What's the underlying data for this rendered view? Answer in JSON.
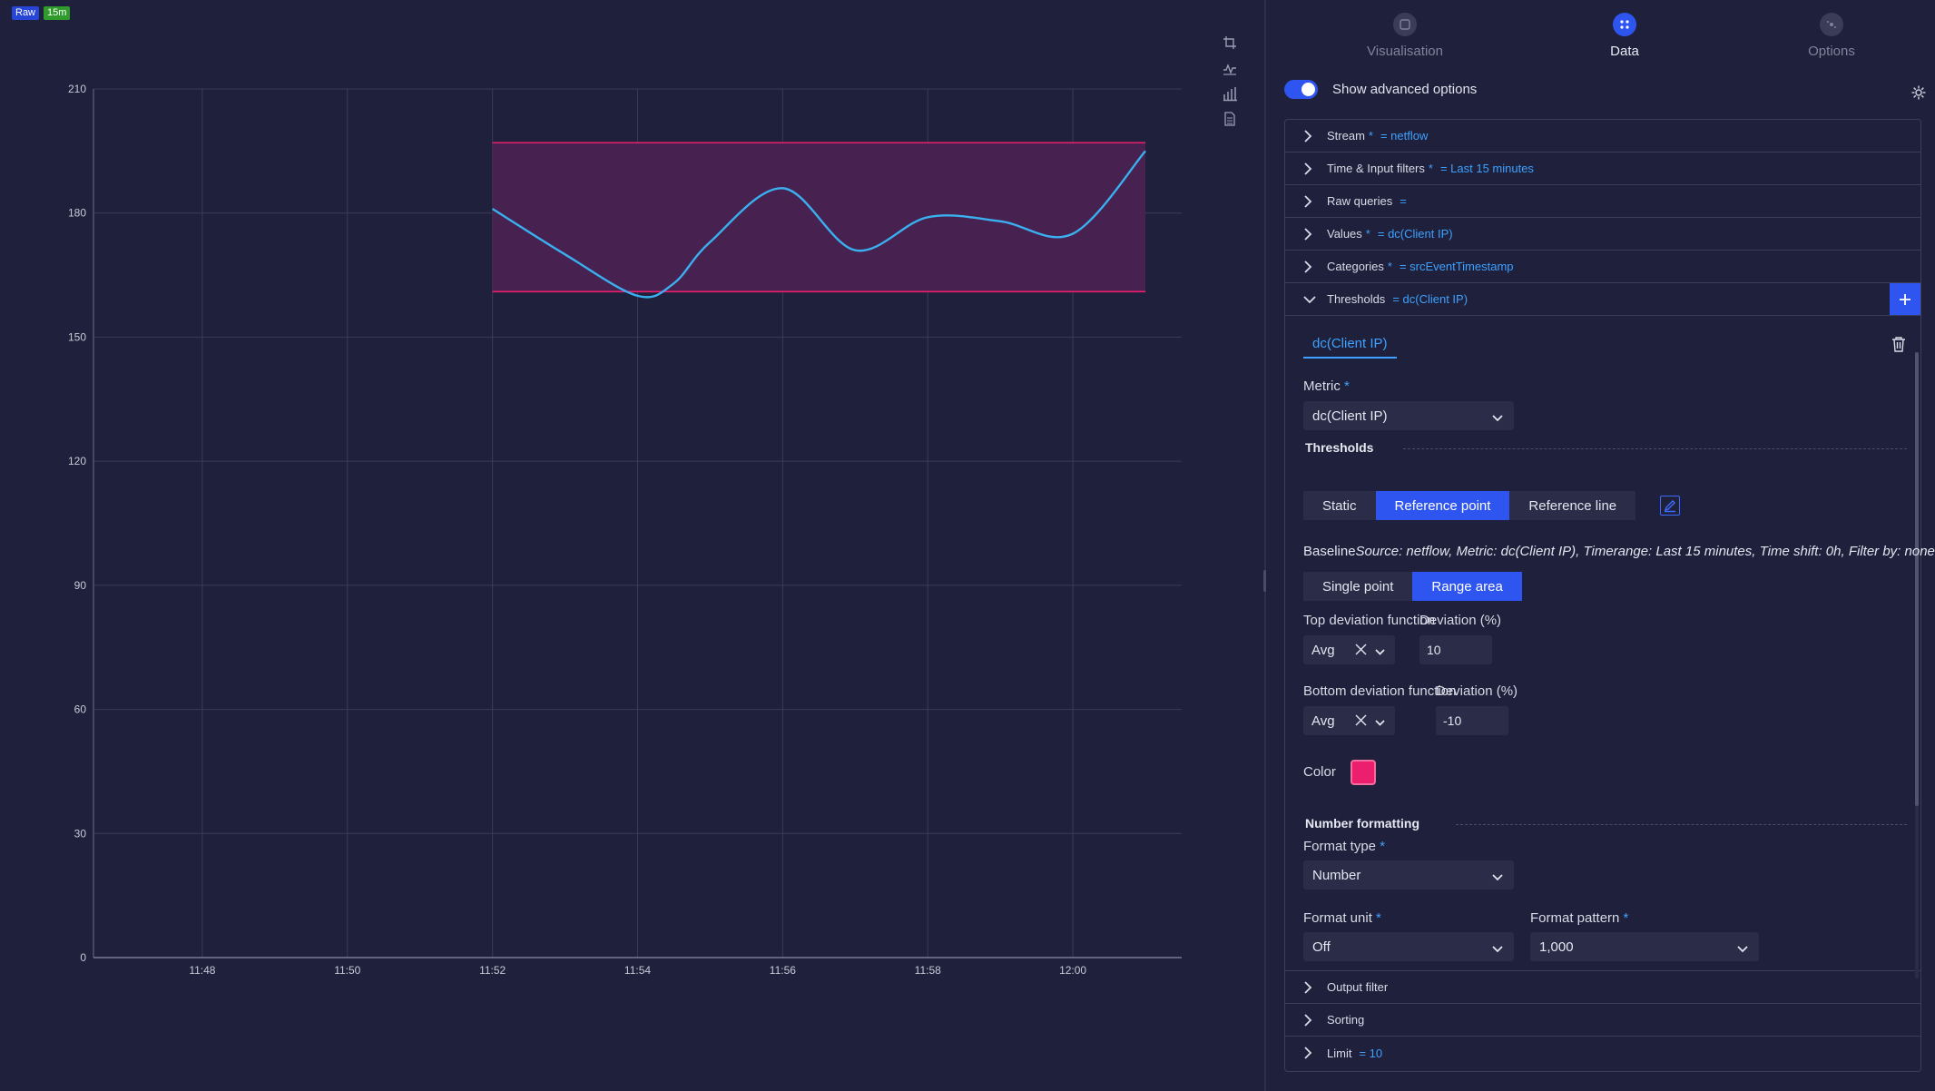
{
  "badges": {
    "raw": "Raw",
    "range": "15m"
  },
  "colors": {
    "accent": "#2f55f0",
    "line": "#3ab0f0",
    "threshold": "#ec1f6f",
    "threshold_fill": "#4a2250"
  },
  "chart_data": {
    "type": "line",
    "y_ticks": [
      "0",
      "30",
      "60",
      "90",
      "120",
      "150",
      "180",
      "210"
    ],
    "x_ticks": [
      "11:48",
      "11:50",
      "11:52",
      "11:54",
      "11:56",
      "11:58",
      "12:00"
    ],
    "ylim": [
      0,
      210
    ],
    "x_range_minutes": [
      "11:46.5",
      "12:01.5"
    ],
    "series": [
      {
        "x": [
          "11:52",
          "11:53",
          "11:54",
          "11:54.5",
          "11:55",
          "11:56",
          "11:57",
          "11:58",
          "11:59",
          "12:00",
          "12:01"
        ],
        "values": [
          181,
          170,
          160,
          163,
          173,
          186,
          171,
          179,
          178,
          175,
          195
        ]
      }
    ],
    "threshold_band": {
      "x_start": "11:52",
      "x_end": "12:01",
      "top": 197,
      "bottom": 161
    },
    "grid": true
  },
  "chart_tools": [
    "crop-icon",
    "line-chart-icon",
    "bar-chart-icon",
    "document-icon"
  ],
  "tabs": [
    {
      "label": "Visualisation",
      "icon": "visualisation-icon",
      "active": false
    },
    {
      "label": "Data",
      "icon": "data-icon",
      "active": true
    },
    {
      "label": "Options",
      "icon": "options-icon",
      "active": false
    }
  ],
  "advanced": {
    "label": "Show advanced options",
    "enabled": true
  },
  "sections": {
    "stream": {
      "label": "Stream",
      "required": "*",
      "value": "= netflow"
    },
    "time": {
      "label": "Time & Input filters",
      "required": "*",
      "value": "= Last 15 minutes"
    },
    "raw": {
      "label": "Raw queries",
      "value": "="
    },
    "values": {
      "label": "Values",
      "required": "*",
      "value": "= dc(Client IP)"
    },
    "categories": {
      "label": "Categories",
      "required": "*",
      "value": "= srcEventTimestamp"
    },
    "thresholds": {
      "label": "Thresholds",
      "value": "= dc(Client IP)"
    },
    "output": {
      "label": "Output filter"
    },
    "sorting": {
      "label": "Sorting"
    },
    "limit": {
      "label": "Limit",
      "value": "= 10"
    }
  },
  "threshold_form": {
    "metric_tab": "dc(Client IP)",
    "metric_label": "Metric",
    "required": "*",
    "metric_value": "dc(Client IP)",
    "group_title": "Thresholds",
    "modes": [
      "Static",
      "Reference point",
      "Reference line"
    ],
    "active_mode": "Reference point",
    "baseline_label": "Baseline",
    "baseline_text": "Source: netflow, Metric: dc(Client IP), Timerange: Last 15 minutes, Time shift: 0h, Filter by: none",
    "shapes": [
      "Single point",
      "Range area"
    ],
    "active_shape": "Range area",
    "top_fn_label": "Top deviation function",
    "top_fn_value": "Avg",
    "top_dev_label": "Deviation (%)",
    "top_dev_value": "10",
    "bottom_fn_label": "Bottom deviation function",
    "bottom_fn_value": "Avg",
    "bottom_dev_label": "Deviation (%)",
    "bottom_dev_value": "-10",
    "color_label": "Color",
    "color_value": "#ec1f6f"
  },
  "number_formatting": {
    "title": "Number formatting",
    "format_type_label": "Format type",
    "format_type_value": "Number",
    "format_unit_label": "Format unit",
    "format_unit_value": "Off",
    "format_pattern_label": "Format pattern",
    "format_pattern_value": "1,000"
  }
}
